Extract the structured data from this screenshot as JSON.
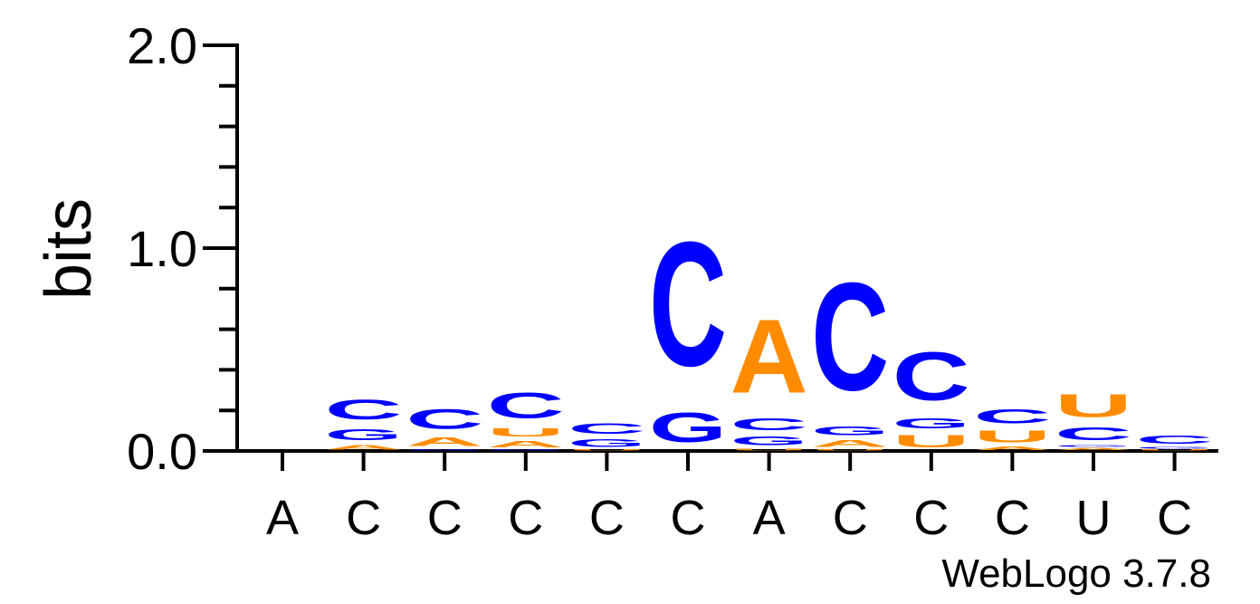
{
  "chart_data": {
    "type": "sequence-logo",
    "ylabel": "bits",
    "ylim": [
      0,
      2
    ],
    "y_ticks": [
      "0.0",
      "1.0",
      "2.0"
    ],
    "categories": [
      "A",
      "C",
      "C",
      "C",
      "C",
      "C",
      "A",
      "C",
      "C",
      "C",
      "U",
      "C"
    ],
    "footer": "WebLogo 3.7.8",
    "colors": {
      "A": "#ff8c00",
      "C": "#0000ff",
      "G": "#0000ff",
      "U": "#ff8c00"
    },
    "columns": [
      [],
      [
        {
          "letter": "A",
          "bits": 0.035
        },
        {
          "letter": "G",
          "bits": 0.09
        },
        {
          "letter": "C",
          "bits": 0.155
        }
      ],
      [
        {
          "letter": "G",
          "bits": 0.01
        },
        {
          "letter": "A",
          "bits": 0.07
        },
        {
          "letter": "C",
          "bits": 0.155
        }
      ],
      [
        {
          "letter": "G",
          "bits": 0.008
        },
        {
          "letter": "A",
          "bits": 0.05
        },
        {
          "letter": "U",
          "bits": 0.065
        },
        {
          "letter": "C",
          "bits": 0.2
        }
      ],
      [
        {
          "letter": "U",
          "bits": 0.008
        },
        {
          "letter": "G",
          "bits": 0.06
        },
        {
          "letter": "C",
          "bits": 0.085
        }
      ],
      [
        {
          "letter": "G",
          "bits": 0.23
        },
        {
          "letter": "C",
          "bits": 0.98
        }
      ],
      [
        {
          "letter": "U",
          "bits": 0.015
        },
        {
          "letter": "G",
          "bits": 0.07
        },
        {
          "letter": "C",
          "bits": 0.09
        },
        {
          "letter": "A",
          "bits": 0.58
        }
      ],
      [
        {
          "letter": "U",
          "bits": 0.01
        },
        {
          "letter": "A",
          "bits": 0.055
        },
        {
          "letter": "G",
          "bits": 0.07
        },
        {
          "letter": "C",
          "bits": 0.85
        }
      ],
      [
        {
          "letter": "U",
          "bits": 0.095
        },
        {
          "letter": "G",
          "bits": 0.08
        },
        {
          "letter": "C",
          "bits": 0.38
        }
      ],
      [
        {
          "letter": "A",
          "bits": 0.025
        },
        {
          "letter": "U",
          "bits": 0.09
        },
        {
          "letter": "C",
          "bits": 0.11
        }
      ],
      [
        {
          "letter": "A",
          "bits": 0.018
        },
        {
          "letter": "G",
          "bits": 0.015
        },
        {
          "letter": "C",
          "bits": 0.1
        },
        {
          "letter": "U",
          "bits": 0.18
        }
      ],
      [
        {
          "letter": "U",
          "bits": 0.008
        },
        {
          "letter": "G",
          "bits": 0.015
        },
        {
          "letter": "C",
          "bits": 0.065
        }
      ]
    ]
  }
}
